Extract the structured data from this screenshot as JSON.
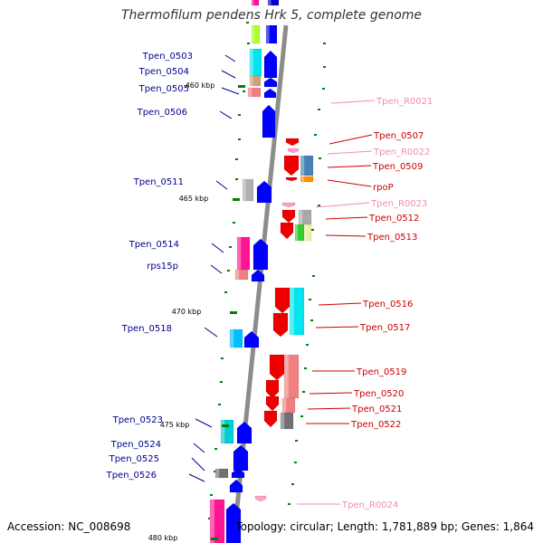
{
  "title": "Thermofilum pendens Hrk 5, complete genome",
  "accession": "Accession: NC_008698",
  "topology": "Topology: circular; Length: 1,781,889 bp; Genes: 1,864",
  "colors": {
    "backbone": "#8c8c8c",
    "left_label": "#00008b",
    "right_label": "#cc0000",
    "rna_label": "#f28db2",
    "tick": "#008000"
  },
  "kbp_marks": [
    {
      "label": "460 kbp"
    },
    {
      "label": "465 kbp"
    },
    {
      "label": "470 kbp"
    },
    {
      "label": "475 kbp"
    },
    {
      "label": "480 kbp"
    }
  ],
  "left_genes": [
    {
      "label": "Tpen_0503"
    },
    {
      "label": "Tpen_0504"
    },
    {
      "label": "Tpen_0505"
    },
    {
      "label": "Tpen_0506"
    },
    {
      "label": "Tpen_0511"
    },
    {
      "label": "Tpen_0514"
    },
    {
      "label": "rps15p"
    },
    {
      "label": "Tpen_0518"
    },
    {
      "label": "Tpen_0523"
    },
    {
      "label": "Tpen_0524"
    },
    {
      "label": "Tpen_0525"
    },
    {
      "label": "Tpen_0526"
    }
  ],
  "right_genes": [
    {
      "label": "Tpen_R0021",
      "rna": true
    },
    {
      "label": "Tpen_0507"
    },
    {
      "label": "Tpen_R0022",
      "rna": true
    },
    {
      "label": "Tpen_0509"
    },
    {
      "label": "rpoP"
    },
    {
      "label": "Tpen_R0023",
      "rna": true
    },
    {
      "label": "Tpen_0512"
    },
    {
      "label": "Tpen_0513"
    },
    {
      "label": "Tpen_0516"
    },
    {
      "label": "Tpen_0517"
    },
    {
      "label": "Tpen_0519"
    },
    {
      "label": "Tpen_0520"
    },
    {
      "label": "Tpen_0521"
    },
    {
      "label": "Tpen_0522"
    },
    {
      "label": "Tpen_R0024",
      "rna": true
    }
  ]
}
